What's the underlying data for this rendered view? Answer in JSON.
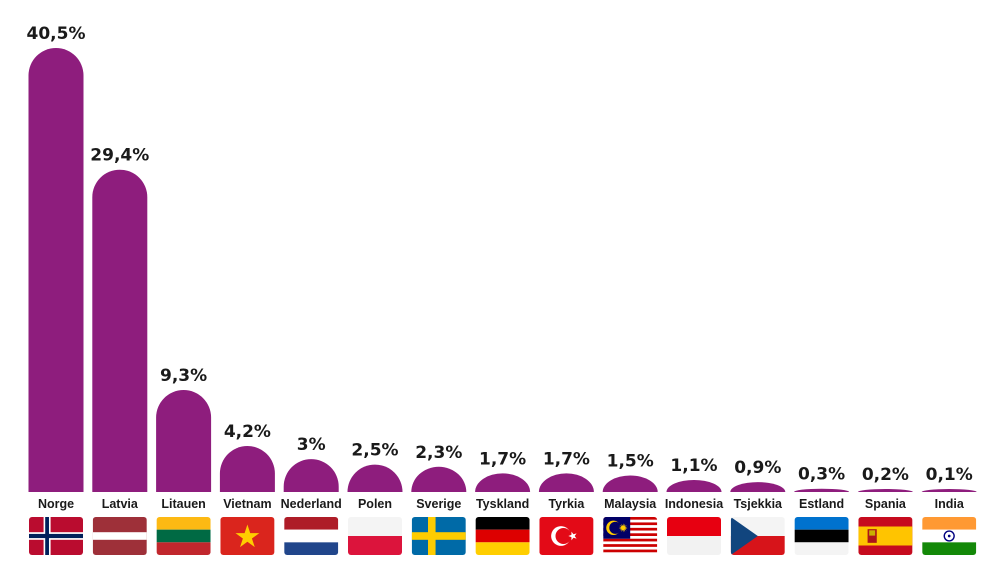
{
  "chart_data": {
    "type": "bar",
    "categories": [
      "Norge",
      "Latvia",
      "Litauen",
      "Vietnam",
      "Nederland",
      "Polen",
      "Sverige",
      "Tyskland",
      "Tyrkia",
      "Malaysia",
      "Indonesia",
      "Tsjekkia",
      "Estland",
      "Spania",
      "India"
    ],
    "values": [
      40.5,
      29.4,
      9.3,
      4.2,
      3,
      2.5,
      2.3,
      1.7,
      1.7,
      1.5,
      1.1,
      0.9,
      0.3,
      0.2,
      0.1
    ],
    "value_labels": [
      "40,5%",
      "29,4%",
      "9,3%",
      "4,2%",
      "3%",
      "2,5%",
      "2,3%",
      "1,7%",
      "1,7%",
      "1,5%",
      "1,1%",
      "0,9%",
      "0,3%",
      "0,2%",
      "0,1%"
    ],
    "title": "",
    "xlabel": "",
    "ylabel": "",
    "ylim": [
      0,
      40.5
    ],
    "grid": false,
    "bar_color": "#8e1d7d",
    "flag_icons": [
      "norway-flag-icon",
      "latvia-flag-icon",
      "lithuania-flag-icon",
      "vietnam-flag-icon",
      "netherlands-flag-icon",
      "poland-flag-icon",
      "sweden-flag-icon",
      "germany-flag-icon",
      "turkey-flag-icon",
      "malaysia-flag-icon",
      "indonesia-flag-icon",
      "czechia-flag-icon",
      "estonia-flag-icon",
      "spain-flag-icon",
      "india-flag-icon"
    ]
  }
}
